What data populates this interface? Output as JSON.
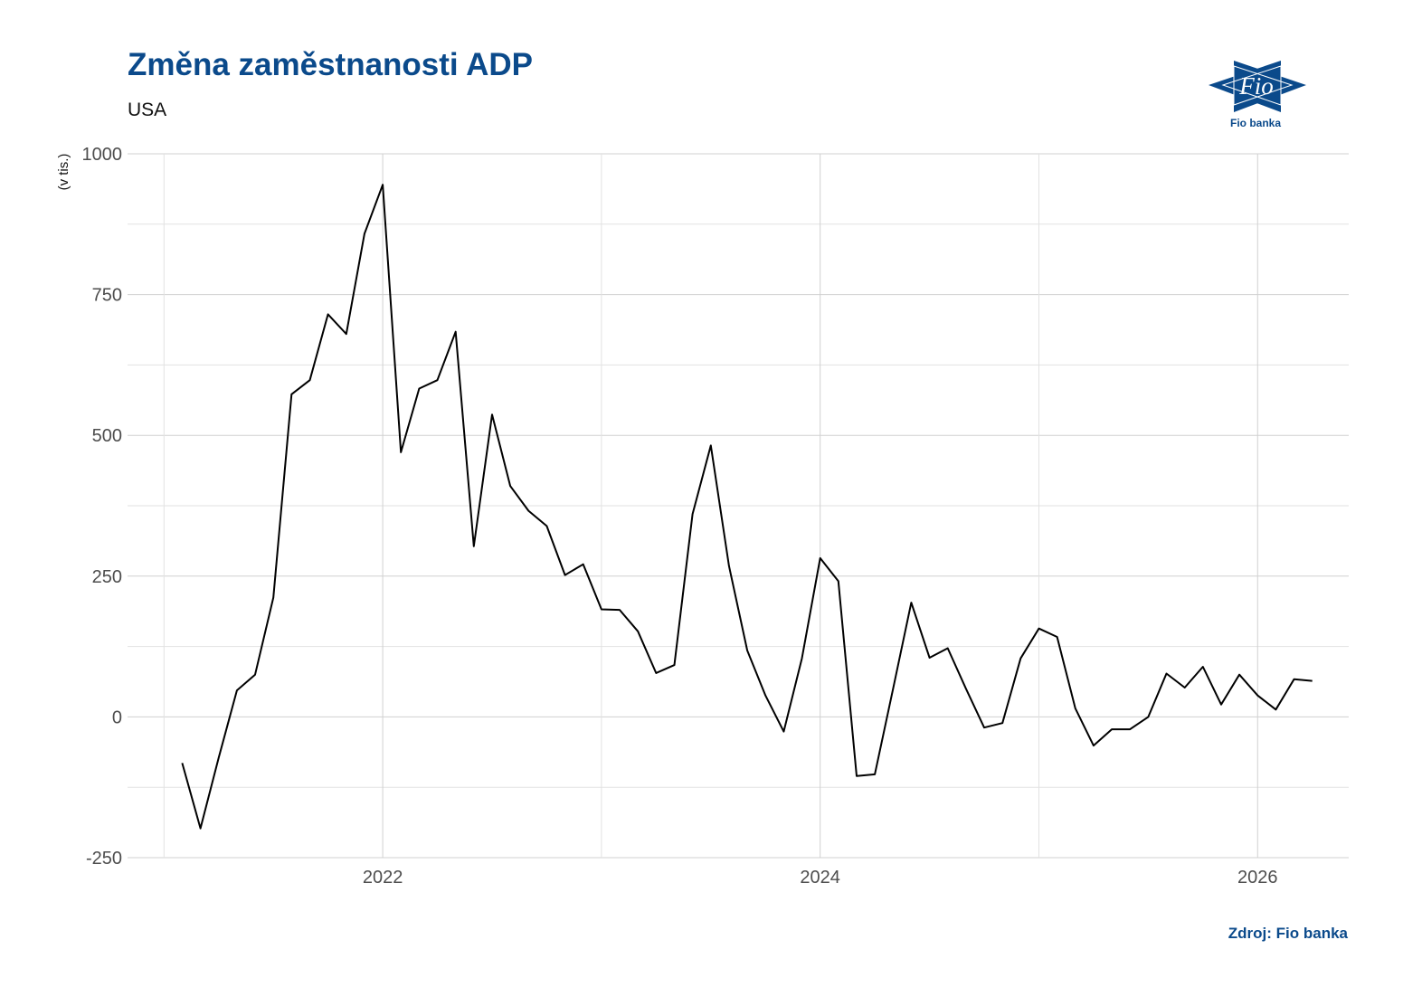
{
  "header": {
    "title": "Změna zaměstnanosti ADP",
    "subtitle": "USA"
  },
  "footer": {
    "source": "Zdroj: Fio banka"
  },
  "logo": {
    "mark_text": "Fio",
    "name": "Fio banka",
    "color": "#0b4a8b"
  },
  "chart_data": {
    "type": "line",
    "title": "Změna zaměstnanosti ADP",
    "subtitle": "USA",
    "xlabel": "",
    "ylabel": "(v tis.)",
    "x_ticks": [
      "2022",
      "2024",
      "2026"
    ],
    "y_ticks": [
      -250,
      0,
      250,
      500,
      750,
      1000
    ],
    "ylim": [
      -250,
      1000
    ],
    "xlim": [
      "2020-11",
      "2026-06"
    ],
    "grid": true,
    "line_color": "#000000",
    "series": [
      {
        "x": [
          "2021-02",
          "2021-03",
          "2021-04",
          "2021-05",
          "2021-06",
          "2021-07",
          "2021-08",
          "2021-09",
          "2021-10",
          "2021-11",
          "2021-12",
          "2022-01",
          "2022-02",
          "2022-03",
          "2022-04",
          "2022-05",
          "2022-06",
          "2022-07",
          "2022-08",
          "2022-09",
          "2022-10",
          "2022-11",
          "2022-12",
          "2023-01",
          "2023-02",
          "2023-03",
          "2023-04",
          "2023-05",
          "2023-06",
          "2023-07",
          "2023-08",
          "2023-09",
          "2023-10",
          "2023-11",
          "2023-12",
          "2024-01",
          "2024-02",
          "2024-03",
          "2024-04",
          "2024-05",
          "2024-06",
          "2024-07",
          "2024-08",
          "2024-09",
          "2024-10",
          "2024-11",
          "2024-12",
          "2025-01",
          "2025-02",
          "2025-03",
          "2025-04",
          "2025-05",
          "2025-06",
          "2025-07",
          "2025-08",
          "2025-09",
          "2025-10",
          "2025-11",
          "2025-12",
          "2026-01",
          "2026-02",
          "2026-03",
          "2026-04"
        ],
        "values": [
          -82,
          -198,
          -73,
          47,
          75,
          212,
          573,
          598,
          715,
          680,
          858,
          945,
          470,
          583,
          598,
          684,
          303,
          537,
          410,
          366,
          339,
          252,
          271,
          191,
          190,
          152,
          78,
          92,
          360,
          482,
          268,
          118,
          38,
          -26,
          104,
          282,
          241,
          -105,
          -102,
          50,
          203,
          105,
          122,
          50,
          -19,
          -11,
          104,
          157,
          142,
          15,
          -51,
          -22,
          -22,
          0,
          77,
          52,
          89,
          22,
          75,
          38,
          13,
          67,
          64
        ]
      }
    ]
  }
}
